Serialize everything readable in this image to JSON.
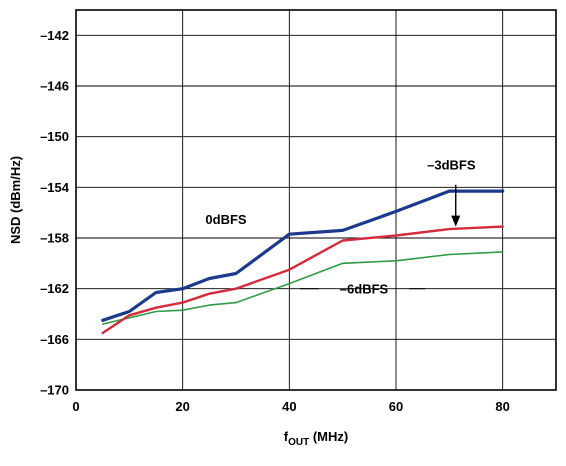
{
  "chart_data": {
    "type": "line",
    "title": "",
    "xlabel": {
      "main": "f",
      "subscript": "OUT",
      "suffix": " (MHz)"
    },
    "ylabel": "NSD (dBm/Hz)",
    "xlim": [
      0,
      90
    ],
    "ylim": [
      -170,
      -140
    ],
    "x_ticks": [
      0,
      20,
      40,
      60,
      80
    ],
    "y_ticks": [
      -170,
      -166,
      -162,
      -158,
      -154,
      -150,
      -146,
      -142
    ],
    "x_tick_labels": [
      "0",
      "20",
      "40",
      "60",
      "80"
    ],
    "y_tick_labels": [
      "–170",
      "–166",
      "–162",
      "–158",
      "–154",
      "–150",
      "–146",
      "–142"
    ],
    "grid": true,
    "series": [
      {
        "name": "0dBFS",
        "color": "#1b3a8c",
        "x": [
          5,
          10,
          15,
          20,
          25,
          30,
          40,
          50,
          60,
          70,
          80
        ],
        "y": [
          -164.5,
          -163.8,
          -162.3,
          -162.0,
          -161.2,
          -160.8,
          -157.7,
          -157.4,
          -155.9,
          -154.3,
          -154.3
        ]
      },
      {
        "name": "–3dBFS",
        "color": "#d42a3c",
        "x": [
          5,
          10,
          15,
          20,
          25,
          30,
          40,
          50,
          60,
          70,
          80
        ],
        "y": [
          -165.5,
          -164.1,
          -163.5,
          -163.1,
          -162.4,
          -162.0,
          -160.5,
          -158.2,
          -157.8,
          -157.3,
          -157.1
        ]
      },
      {
        "name": "–6dBFS",
        "color": "#2f9a48",
        "x": [
          5,
          10,
          15,
          20,
          25,
          30,
          40,
          50,
          60,
          70,
          80
        ],
        "y": [
          -164.8,
          -164.3,
          -163.8,
          -163.7,
          -163.3,
          -163.1,
          -161.6,
          -160.0,
          -159.8,
          -159.3,
          -159.1
        ]
      }
    ],
    "annotations": [
      {
        "text": "0dBFS",
        "series": "0dBFS"
      },
      {
        "text": "–3dBFS",
        "series": "–3dBFS",
        "arrow": true
      },
      {
        "text": "–6dBFS",
        "series": "–6dBFS",
        "leader": true
      }
    ]
  }
}
